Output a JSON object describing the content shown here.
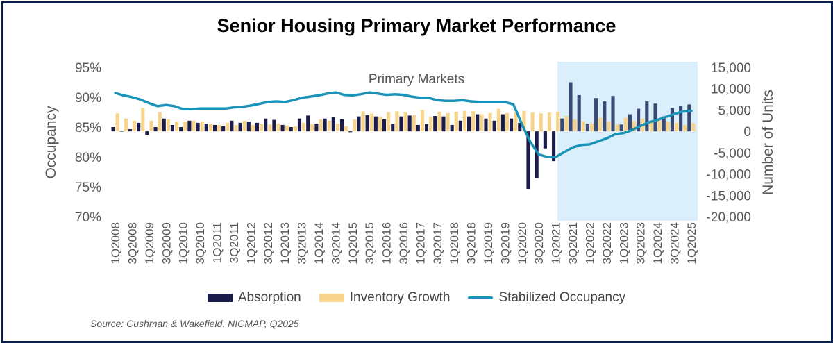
{
  "title": "Senior Housing Primary Market Performance",
  "source": "Source: Cushman & Wakefield. NICMAP, Q2025",
  "legend": {
    "absorption": "Absorption",
    "inventory": "Inventory Growth",
    "occupancy": "Stabilized Occupancy"
  },
  "colors": {
    "absorption": "#1b1c4a",
    "absorption_recent": "#3a4a75",
    "inventory": "#f7d48b",
    "occupancy": "#1a93b8",
    "highlight": "#dbeefb",
    "axis_text": "#595959"
  },
  "chart_data": {
    "type": "bar+line",
    "title": "Senior Housing Primary Market Performance",
    "annotation": "Primary Markets",
    "ylabel_left": "Occupancy",
    "ylabel_right": "Number of Units",
    "ylim_left": [
      70,
      95
    ],
    "ylim_right": [
      -20000,
      15000
    ],
    "yticks_left": [
      "95%",
      "90%",
      "85%",
      "80%",
      "75%",
      "70%"
    ],
    "yticks_right": [
      "15,000",
      "10,000",
      "5,000",
      "0",
      "-5,000",
      "-10,000",
      "-15,000",
      "-20,000"
    ],
    "highlight_from_index": 53,
    "categories": [
      "1Q2008",
      "2Q2008",
      "3Q2008",
      "4Q2008",
      "1Q2009",
      "2Q2009",
      "3Q2009",
      "4Q2009",
      "1Q2010",
      "2Q2010",
      "3Q2010",
      "4Q2010",
      "1Q2011",
      "2Q2011",
      "3Q2011",
      "4Q2011",
      "1Q2012",
      "2Q2012",
      "3Q2012",
      "4Q2012",
      "1Q2013",
      "2Q2013",
      "3Q2013",
      "4Q2013",
      "1Q2014",
      "2Q2014",
      "3Q2014",
      "4Q2014",
      "1Q2015",
      "2Q2015",
      "3Q2015",
      "4Q2015",
      "1Q2016",
      "2Q2016",
      "3Q2016",
      "4Q2016",
      "1Q2017",
      "2Q2017",
      "3Q2017",
      "4Q2017",
      "1Q2018",
      "2Q2018",
      "3Q2018",
      "4Q2018",
      "1Q2019",
      "2Q2019",
      "3Q2019",
      "4Q2019",
      "1Q2020",
      "2Q2020",
      "3Q2020",
      "4Q2020",
      "1Q2021",
      "2Q2021",
      "3Q2021",
      "4Q2021",
      "1Q2022",
      "2Q2022",
      "3Q2022",
      "4Q2022",
      "1Q2023",
      "2Q2023",
      "3Q2023",
      "4Q2023",
      "1Q2024",
      "2Q2024",
      "3Q2024",
      "4Q2024",
      "1Q2025"
    ],
    "tick_label_every": 2,
    "series": [
      {
        "name": "Absorption",
        "type": "bar",
        "axis": "right",
        "values": [
          1000,
          0,
          500,
          2000,
          -800,
          1000,
          3000,
          1500,
          1000,
          2500,
          2000,
          1800,
          1500,
          1200,
          2500,
          2000,
          2300,
          2000,
          3000,
          2700,
          1500,
          1000,
          3000,
          3700,
          1800,
          3000,
          3300,
          2800,
          -200,
          3500,
          3800,
          3500,
          2800,
          1800,
          3500,
          3700,
          1500,
          1700,
          3600,
          3500,
          1500,
          2500,
          3500,
          4000,
          3000,
          2500,
          4000,
          3000,
          2000,
          -13500,
          -11000,
          -4000,
          -7000,
          3000,
          11500,
          8500,
          1800,
          7800,
          7000,
          8300,
          1600,
          4000,
          5300,
          7000,
          6500,
          3500,
          5500,
          6000,
          6300
        ]
      },
      {
        "name": "Inventory Growth",
        "type": "bar",
        "axis": "right",
        "values": [
          4200,
          3000,
          2500,
          5500,
          2500,
          4500,
          2800,
          2300,
          2300,
          2500,
          2300,
          1800,
          1500,
          2000,
          1500,
          2500,
          1500,
          1700,
          1600,
          1800,
          1400,
          1200,
          2000,
          1700,
          2800,
          2500,
          1800,
          1200,
          2800,
          4700,
          4200,
          3500,
          4500,
          4700,
          4500,
          3800,
          5000,
          3500,
          4600,
          4300,
          4600,
          4800,
          4700,
          4000,
          4300,
          5300,
          4300,
          4500,
          4800,
          4400,
          4200,
          4400,
          4600,
          3600,
          2800,
          2300,
          1800,
          3200,
          2300,
          1600,
          3200,
          2400,
          3000,
          2200,
          2500,
          2300,
          2000,
          1500,
          1900
        ]
      },
      {
        "name": "Stabilized Occupancy",
        "type": "line",
        "axis": "left",
        "values": [
          90.7,
          90.3,
          90.0,
          89.6,
          89.0,
          88.5,
          88.7,
          88.5,
          88.0,
          88.0,
          88.1,
          88.1,
          88.1,
          88.1,
          88.3,
          88.4,
          88.6,
          88.9,
          89.2,
          89.3,
          89.2,
          89.5,
          89.9,
          90.1,
          90.3,
          90.6,
          90.8,
          90.4,
          90.3,
          90.5,
          90.8,
          90.6,
          90.4,
          90.5,
          90.4,
          90.1,
          89.9,
          89.9,
          89.5,
          89.4,
          89.4,
          89.5,
          89.3,
          89.2,
          89.2,
          89.2,
          89.2,
          88.8,
          85.5,
          82.5,
          80.4,
          80.0,
          80.0,
          80.8,
          81.6,
          82.0,
          82.1,
          82.6,
          83.1,
          83.8,
          84.0,
          84.5,
          85.2,
          85.8,
          86.2,
          86.7,
          87.2,
          87.6,
          87.7
        ]
      }
    ]
  }
}
